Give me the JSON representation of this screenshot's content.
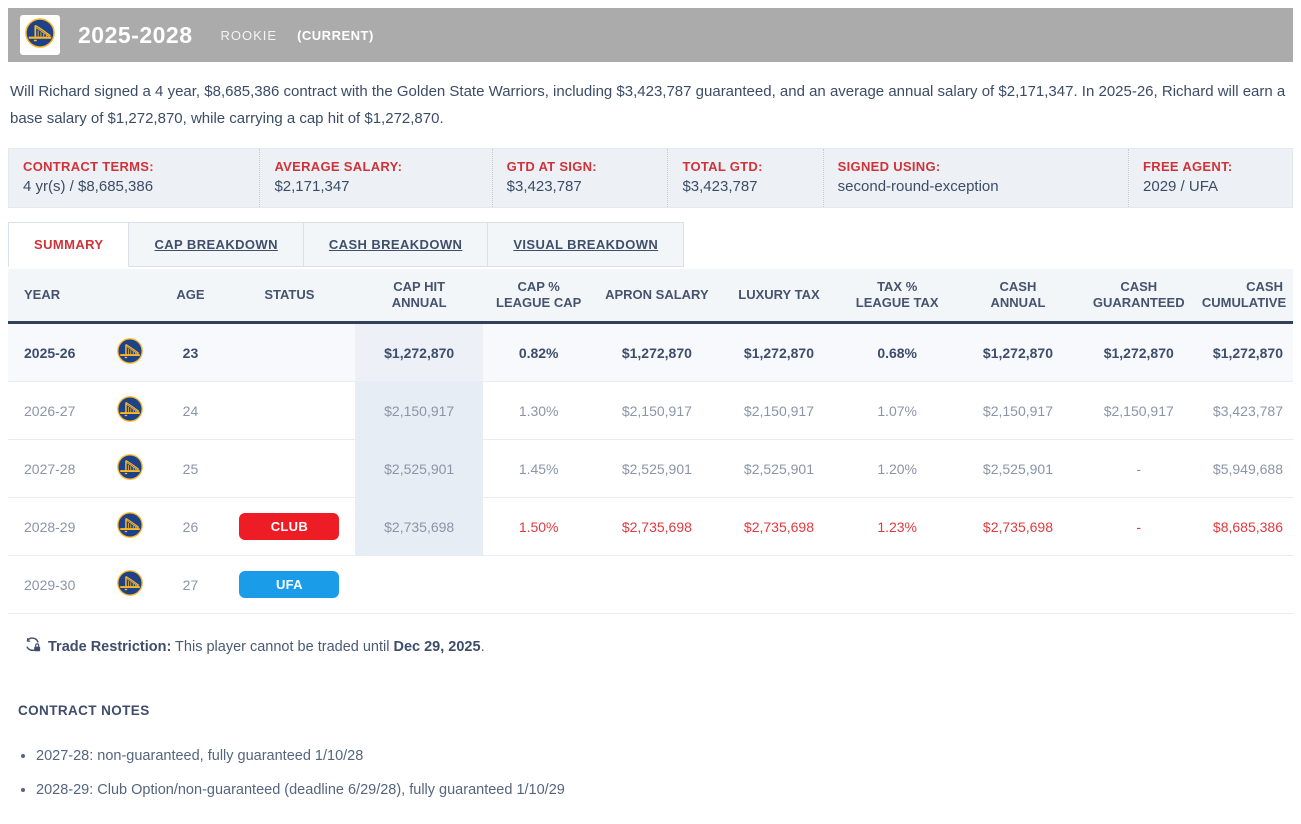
{
  "header": {
    "title": "2025-2028",
    "subtitle": "ROOKIE",
    "current_label": "(CURRENT)",
    "bar_color": "#ababab",
    "team": "Golden State Warriors",
    "logo_icon": "warriors-logo"
  },
  "summary_text": "Will Richard signed a 4 year, $8,685,386 contract with the Golden State Warriors, including $3,423,787 guaranteed, and an average annual salary of $2,171,347. In 2025-26, Richard will earn a base salary of $1,272,870, while carrying a cap hit of $1,272,870.",
  "contract_terms": [
    {
      "label": "CONTRACT TERMS:",
      "value": "4 yr(s) / $8,685,386"
    },
    {
      "label": "AVERAGE SALARY:",
      "value": "$2,171,347"
    },
    {
      "label": "GTD AT SIGN:",
      "value": "$3,423,787"
    },
    {
      "label": "TOTAL GTD:",
      "value": "$3,423,787"
    },
    {
      "label": "SIGNED USING:",
      "value": "second-round-exception"
    },
    {
      "label": "FREE AGENT:",
      "value": "2029 / UFA"
    }
  ],
  "tabs": [
    {
      "label": "SUMMARY",
      "active": true
    },
    {
      "label": "CAP BREAKDOWN",
      "active": false
    },
    {
      "label": "CASH BREAKDOWN",
      "active": false
    },
    {
      "label": "VISUAL BREAKDOWN",
      "active": false
    }
  ],
  "table": {
    "columns": [
      {
        "lines": [
          "YEAR"
        ],
        "key": "year"
      },
      {
        "lines": [
          "AGE"
        ],
        "key": "age"
      },
      {
        "lines": [
          "STATUS"
        ],
        "key": "status"
      },
      {
        "lines": [
          "CAP HIT",
          "ANNUAL"
        ],
        "key": "cap_hit"
      },
      {
        "lines": [
          "CAP %",
          "LEAGUE CAP"
        ],
        "key": "cap_pct"
      },
      {
        "lines": [
          "APRON SALARY"
        ],
        "key": "apron"
      },
      {
        "lines": [
          "LUXURY TAX"
        ],
        "key": "luxury"
      },
      {
        "lines": [
          "TAX %",
          "LEAGUE TAX"
        ],
        "key": "tax_pct"
      },
      {
        "lines": [
          "CASH",
          "ANNUAL"
        ],
        "key": "cash_annual"
      },
      {
        "lines": [
          "CASH",
          "GUARANTEED"
        ],
        "key": "cash_gtd"
      },
      {
        "lines": [
          "CASH",
          "CUMULATIVE"
        ],
        "key": "cash_cum"
      }
    ],
    "rows": [
      {
        "year": "2025-26",
        "age": "23",
        "status": null,
        "cap_hit": "$1,272,870",
        "cap_pct": "0.82%",
        "apron": "$1,272,870",
        "luxury": "$1,272,870",
        "tax_pct": "0.68%",
        "cash_annual": "$1,272,870",
        "cash_gtd": "$1,272,870",
        "cash_cum": "$1,272,870",
        "style": "bold",
        "cap_shaded": true
      },
      {
        "year": "2026-27",
        "age": "24",
        "status": null,
        "cap_hit": "$2,150,917",
        "cap_pct": "1.30%",
        "apron": "$2,150,917",
        "luxury": "$2,150,917",
        "tax_pct": "1.07%",
        "cash_annual": "$2,150,917",
        "cash_gtd": "$2,150,917",
        "cash_cum": "$3,423,787",
        "style": "gray",
        "cap_shaded": true
      },
      {
        "year": "2027-28",
        "age": "25",
        "status": null,
        "cap_hit": "$2,525,901",
        "cap_pct": "1.45%",
        "apron": "$2,525,901",
        "luxury": "$2,525,901",
        "tax_pct": "1.20%",
        "cash_annual": "$2,525,901",
        "cash_gtd": "-",
        "cash_cum": "$5,949,688",
        "style": "gray",
        "cap_shaded": true
      },
      {
        "year": "2028-29",
        "age": "26",
        "status": {
          "label": "CLUB",
          "color": "#ee1c25"
        },
        "cap_hit": "$2,735,698",
        "cap_pct": "1.50%",
        "apron": "$2,735,698",
        "luxury": "$2,735,698",
        "tax_pct": "1.23%",
        "cash_annual": "$2,735,698",
        "cash_gtd": "-",
        "cash_cum": "$8,685,386",
        "style": "red",
        "cap_shaded": true
      },
      {
        "year": "2029-30",
        "age": "27",
        "status": {
          "label": "UFA",
          "color": "#1b9ce9"
        },
        "cap_hit": "",
        "cap_pct": "",
        "apron": "",
        "luxury": "",
        "tax_pct": "",
        "cash_annual": "",
        "cash_gtd": "",
        "cash_cum": "",
        "style": "gray",
        "cap_shaded": false
      }
    ]
  },
  "trade_restriction": {
    "icon": "trade-lock-icon",
    "label": "Trade Restriction:",
    "text": " This player cannot be traded until ",
    "date": "Dec 29, 2025",
    "suffix": "."
  },
  "contract_notes": {
    "title": "CONTRACT NOTES",
    "items": [
      "2027-28: non-guaranteed, fully guaranteed 1/10/28",
      "2028-29: Club Option/non-guaranteed (deadline 6/29/28), fully guaranteed 1/10/29"
    ]
  },
  "colors": {
    "accent_red": "#cf3339",
    "badge_club": "#ee1c25",
    "badge_ufa": "#1b9ce9",
    "topbar_gray": "#ababab",
    "team_blue": "#1d428a",
    "team_gold": "#fdb927"
  }
}
